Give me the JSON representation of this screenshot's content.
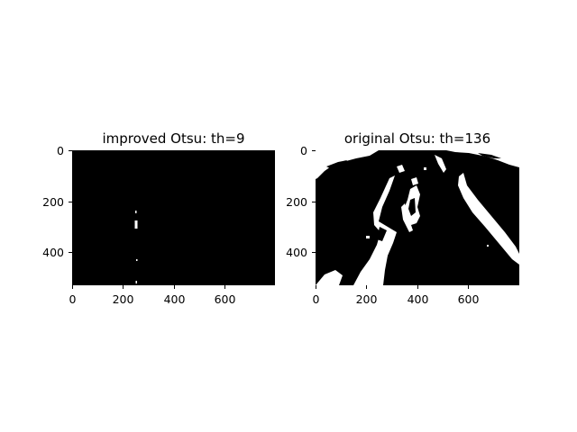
{
  "chart_data": [
    {
      "type": "image",
      "title": "improved Otsu: th=9",
      "image_width": 800,
      "image_height": 530,
      "x_ticks": [
        "0",
        "200",
        "400",
        "600"
      ],
      "y_ticks": [
        "0",
        "200",
        "400"
      ],
      "content": "binary mask: almost entirely black, a few small white specks near x≈250"
    },
    {
      "type": "image",
      "title": "original Otsu: th=136",
      "image_width": 800,
      "image_height": 530,
      "x_ticks": [
        "0",
        "200",
        "400",
        "600"
      ],
      "y_ticks": [
        "0",
        "200",
        "400"
      ],
      "content": "binary mask: black background with white road/edge regions"
    }
  ],
  "colors": {
    "foreground": "#ffffff",
    "background": "#000000"
  }
}
